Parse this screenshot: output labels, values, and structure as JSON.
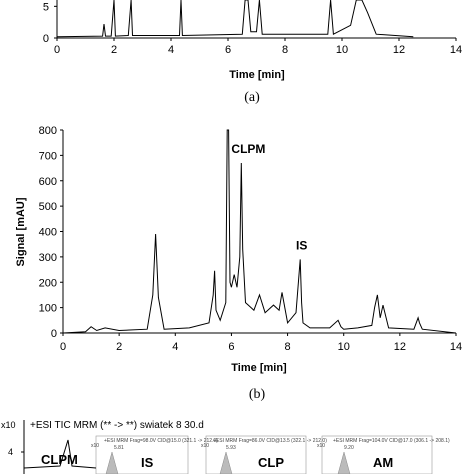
{
  "chart_data": [
    {
      "type": "line",
      "panel": "a",
      "caption": "(a)",
      "xlabel": "Time [min]",
      "xlim": [
        0,
        14
      ],
      "x_ticks": [
        "0",
        "2",
        "4",
        "6",
        "8",
        "10",
        "12",
        "14"
      ],
      "y_ticks": [
        "5",
        "0"
      ],
      "ylim": [
        0,
        6
      ],
      "series": [
        {
          "x": [
            0,
            1.6,
            1.65,
            1.7,
            1.9,
            2.0,
            2.05,
            2.5,
            2.6,
            2.65,
            4.3,
            4.35,
            4.4,
            6.5,
            6.6,
            6.7,
            6.8,
            7.0,
            7.1,
            7.2,
            9.5,
            9.6,
            9.7,
            10.3,
            10.5,
            10.7,
            10.9,
            11.2,
            12.5
          ],
          "y": [
            0.2,
            0.3,
            2.2,
            0.3,
            0.3,
            6.0,
            0.3,
            0.4,
            6.0,
            0.4,
            0.4,
            6.0,
            0.4,
            0.6,
            6.0,
            6.0,
            1.0,
            1.0,
            6.0,
            0.6,
            0.6,
            6.0,
            0.6,
            2.0,
            6.0,
            6.0,
            4.0,
            0.6,
            0.2
          ]
        }
      ]
    },
    {
      "type": "line",
      "panel": "b",
      "caption": "(b)",
      "xlabel": "Time [min]",
      "ylabel": "Signal [mAU]",
      "xlim": [
        0,
        14
      ],
      "ylim": [
        0,
        800
      ],
      "x_ticks": [
        "0",
        "2",
        "4",
        "6",
        "8",
        "10",
        "12",
        "14"
      ],
      "y_ticks": [
        "0",
        "100",
        "200",
        "300",
        "400",
        "500",
        "600",
        "700",
        "800"
      ],
      "annotations": [
        {
          "text": "CLPM",
          "x": 6.0,
          "y": 710
        },
        {
          "text": "IS",
          "x": 8.3,
          "y": 330
        }
      ],
      "series": [
        {
          "x": [
            0,
            0.8,
            1.0,
            1.2,
            1.5,
            2.0,
            3.0,
            3.2,
            3.3,
            3.4,
            3.6,
            4.5,
            5.2,
            5.35,
            5.4,
            5.45,
            5.6,
            5.8,
            5.85,
            5.9,
            5.95,
            6.0,
            6.1,
            6.2,
            6.3,
            6.35,
            6.4,
            6.5,
            6.6,
            6.8,
            7.0,
            7.2,
            7.5,
            7.7,
            7.8,
            8.0,
            8.3,
            8.45,
            8.5,
            8.55,
            8.8,
            9.5,
            9.8,
            9.9,
            10.0,
            10.5,
            11.0,
            11.1,
            11.2,
            11.3,
            11.4,
            11.6,
            12.5,
            12.65,
            12.7,
            12.8,
            14.0
          ],
          "y": [
            0,
            5,
            25,
            10,
            20,
            10,
            15,
            150,
            390,
            140,
            15,
            20,
            40,
            150,
            245,
            90,
            50,
            120,
            800,
            800,
            200,
            180,
            230,
            180,
            300,
            670,
            330,
            120,
            110,
            90,
            150,
            80,
            110,
            90,
            160,
            40,
            80,
            290,
            120,
            40,
            20,
            20,
            50,
            25,
            15,
            20,
            30,
            100,
            150,
            60,
            110,
            20,
            15,
            60,
            40,
            15,
            0
          ]
        }
      ]
    },
    {
      "type": "line",
      "panel": "c",
      "title": "+ESI TIC MRM (** -> **) swiatek 8 30.d",
      "y_scale_label": "x10",
      "y_tick": "4",
      "peak_labels": [
        "CLPM",
        "IS",
        "CLP",
        "AM"
      ],
      "inset_captions": [
        "+ESI MRM Frag=98.0V CID@15.0 (321.1 -> 212.0)",
        "+ESI MRM Frag=86.0V CID@13.5 (322.1 -> 212.0)",
        "+ESI MRM Frag=104.0V CID@17.0 (306.1 -> 208.1)"
      ],
      "inset_y_scale": "x10",
      "inset_peak_values": [
        "5.81",
        "5.93",
        "9.20"
      ]
    }
  ]
}
